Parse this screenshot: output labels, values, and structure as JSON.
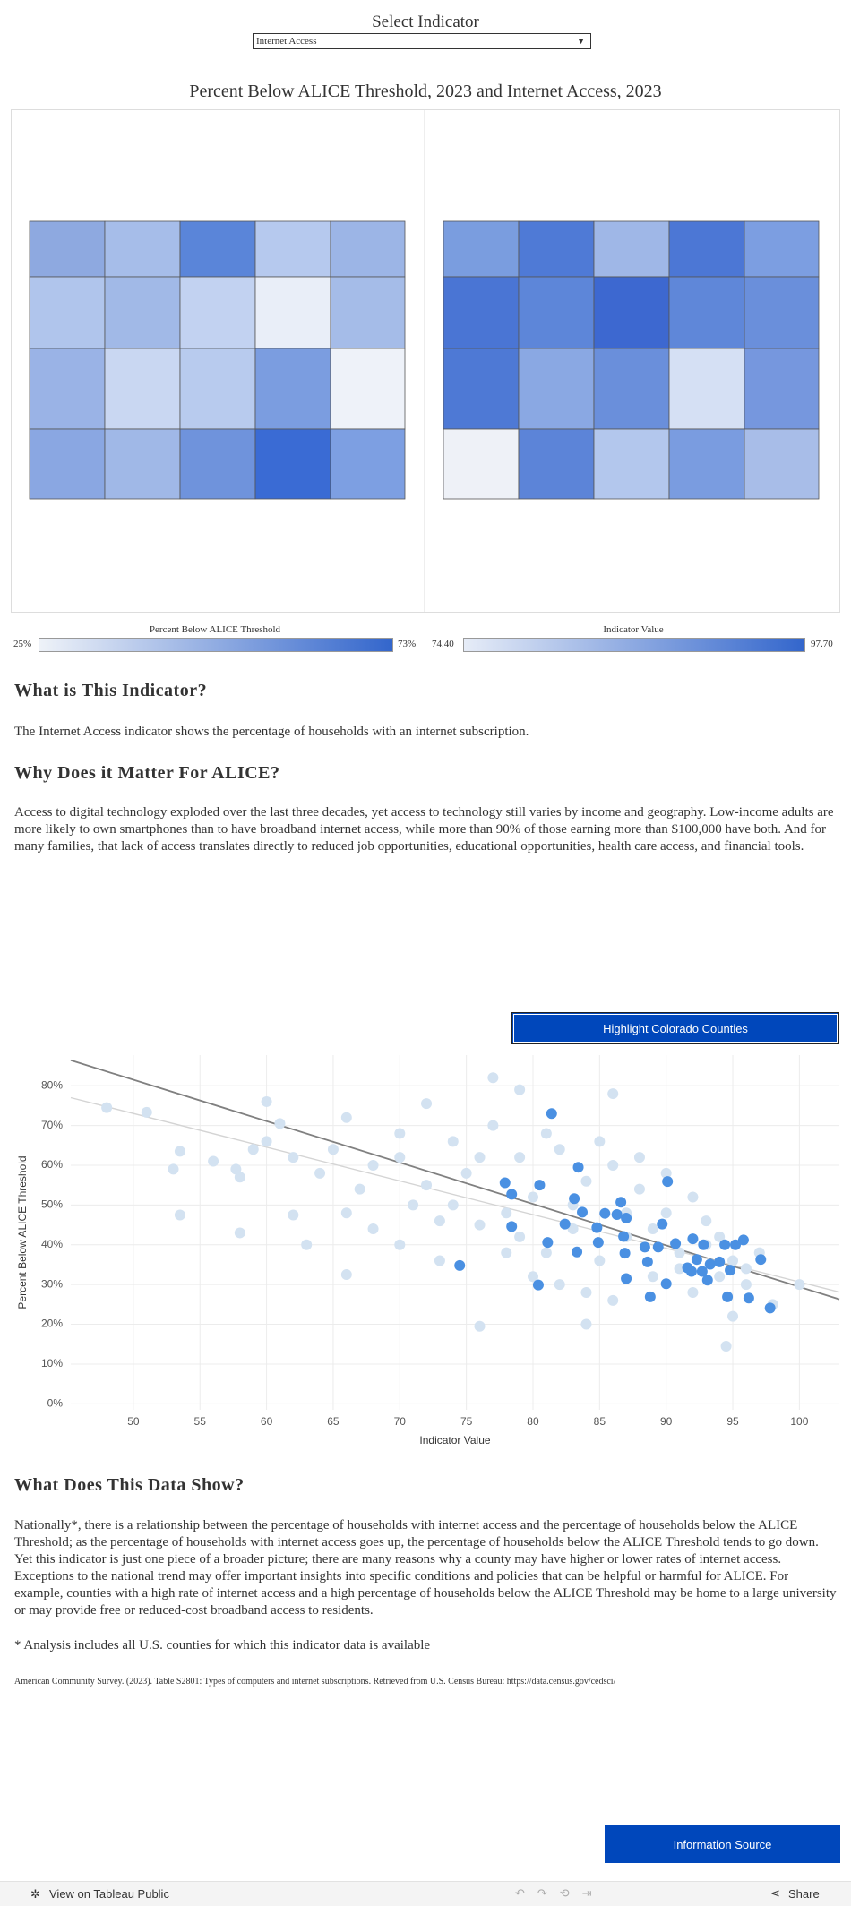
{
  "header": {
    "select_label": "Select Indicator",
    "dropdown_value": "Internet Access"
  },
  "map_title": "Percent Below ALICE Threshold, 2023 and Internet Access, 2023",
  "legends": [
    {
      "title": "Percent Below ALICE Threshold",
      "min": "25%",
      "max": "73%"
    },
    {
      "title": "Indicator Value",
      "min": "74.40",
      "max": "97.70"
    }
  ],
  "sections": [
    {
      "heading": "What is This Indicator?",
      "body": "The Internet Access indicator shows the percentage of households with an internet subscription."
    },
    {
      "heading": "Why Does it Matter For ALICE?",
      "body": "Access to digital technology exploded over the last three decades, yet access to technology still varies by income and geography. Low-income adults are more likely to own smartphones than to have broadband internet access, while more than 90% of those earning more than $100,000 have both. And for many families, that lack of access translates directly to reduced job opportunities, educational opportunities, health care access, and financial tools."
    }
  ],
  "highlight_button": "Highlight Colorado Counties",
  "chart_data": {
    "type": "scatter",
    "x_label": "Indicator Value",
    "y_label": "Percent Below ALICE Threshold",
    "xlim": [
      45.3,
      103
    ],
    "ylim": [
      -1.5,
      87.7
    ],
    "xticks": [
      50,
      55,
      60,
      65,
      70,
      75,
      80,
      85,
      90,
      95,
      100
    ],
    "yticks": [
      {
        "value": 0,
        "label": "0%"
      },
      {
        "value": 10,
        "label": "10%"
      },
      {
        "value": 20,
        "label": "20%"
      },
      {
        "value": 30,
        "label": "30%"
      },
      {
        "value": 40,
        "label": "40%"
      },
      {
        "value": 50,
        "label": "50%"
      },
      {
        "value": 60,
        "label": "60%"
      },
      {
        "value": 70,
        "label": "70%"
      },
      {
        "value": 80,
        "label": "80%"
      }
    ],
    "grid": true,
    "series": [
      {
        "color": "#d3e2f1",
        "x": [
          48,
          51,
          53,
          53.5,
          53.5,
          56,
          58,
          58,
          57.7,
          59,
          60,
          61,
          62,
          63,
          66,
          66,
          67,
          70,
          72,
          73,
          76,
          77,
          79,
          84,
          86,
          94.5,
          95,
          98,
          100,
          68,
          70,
          72,
          74,
          75,
          76,
          78,
          79,
          80,
          81,
          82,
          83,
          84,
          85,
          86,
          87,
          88,
          89,
          90,
          91,
          92,
          93,
          94,
          95,
          96,
          97,
          78,
          80,
          82,
          84,
          86,
          76,
          74,
          70,
          65,
          64,
          62,
          60,
          66,
          68,
          71,
          73,
          77,
          81,
          85,
          88,
          90,
          92,
          94,
          96,
          79,
          83,
          87,
          89,
          91,
          93
        ],
        "values": [
          74.5,
          73.3,
          59,
          63.5,
          47.5,
          61,
          57,
          43,
          59,
          64,
          76,
          70.5,
          47.5,
          40,
          32.5,
          72,
          54,
          40,
          75.5,
          36,
          19.5,
          82,
          79,
          20,
          78,
          14.5,
          22,
          25,
          30,
          60,
          62,
          55,
          50,
          58,
          45,
          48,
          62,
          52,
          38,
          64,
          44,
          56,
          36,
          60,
          42,
          54,
          32,
          48,
          38,
          28,
          46,
          32,
          36,
          30,
          38,
          38,
          32,
          30,
          28,
          26,
          62,
          66,
          68,
          64,
          58,
          62,
          66,
          48,
          44,
          50,
          46,
          70,
          68,
          66,
          62,
          58,
          52,
          42,
          34,
          42,
          50,
          48,
          44,
          34,
          40
        ]
      },
      {
        "color": "#4a90e2",
        "x": [
          81.4,
          83.4,
          77.9,
          80.5,
          90.1,
          78.4,
          83.1,
          86.6,
          85.4,
          86.3,
          87,
          83.7,
          82.4,
          84.8,
          89.7,
          81.1,
          83.3,
          84.9,
          86.8,
          88.4,
          89.4,
          90.7,
          92,
          92.8,
          94.4,
          95.2,
          95.8,
          97.1,
          86.9,
          88.6,
          91.6,
          92.3,
          93.3,
          92.7,
          91.9,
          94,
          94.8,
          93.1,
          90,
          87,
          80.4,
          74.5,
          88.8,
          94.6,
          96.2,
          97.8,
          78.4
        ],
        "values": [
          73,
          59.5,
          55.6,
          55,
          55.9,
          52.7,
          51.6,
          50.7,
          47.9,
          47.6,
          46.7,
          48.2,
          45.2,
          44.3,
          45.2,
          40.6,
          38.2,
          40.6,
          42.1,
          39.4,
          39.4,
          40.3,
          41.5,
          40,
          40,
          40,
          41.2,
          36.3,
          37.9,
          35.7,
          34.2,
          36.3,
          35.1,
          33.3,
          33.3,
          35.7,
          33.6,
          31.1,
          30.2,
          31.5,
          29.9,
          34.8,
          26.9,
          26.9,
          26.6,
          24.1,
          44.6
        ]
      }
    ],
    "trend_lines": [
      {
        "color": "#808080",
        "x": [
          45.3,
          103
        ],
        "values": [
          86.4,
          26.3
        ]
      },
      {
        "color": "#d4d4d4",
        "x": [
          45.3,
          103
        ],
        "values": [
          77.0,
          28.1
        ]
      }
    ]
  },
  "data_show": {
    "heading": "What Does This Data Show?",
    "body": "Nationally*, there is a relationship between the percentage of households with internet access and the percentage of households below the ALICE Threshold; as the percentage of households with internet access goes up, the percentage of households below the ALICE Threshold tends to go down. Yet this indicator is just one piece of a broader picture; there are many reasons why a county may have higher or lower rates of internet access. Exceptions to the national trend may offer important insights into specific conditions and policies that can be helpful or harmful for ALICE. For example, counties with a high rate of internet access and a high percentage of households below the ALICE Threshold may be home to a large university or may provide free or reduced-cost broadband access to residents."
  },
  "footnote": "* Analysis includes all U.S. counties for which this indicator data is available",
  "source": "American Community Survey. (2023). Table S2801: Types of computers and internet subscriptions. Retrieved from U.S. Census Bureau: https://data.census.gov/cedsci/",
  "info_button": "Information Source",
  "footer": {
    "view": "View on Tableau Public",
    "share": "Share"
  }
}
